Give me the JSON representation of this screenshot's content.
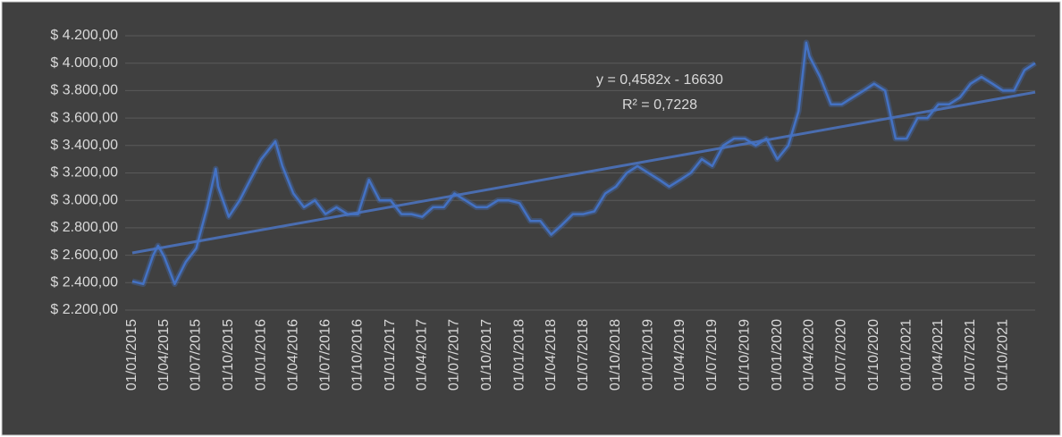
{
  "chart_data": {
    "type": "line",
    "color": "#4472c4",
    "x": [
      "01/01/2015",
      "01/02/2015",
      "01/03/2015",
      "15/03/2015",
      "01/04/2015",
      "01/05/2015",
      "01/06/2015",
      "01/07/2015",
      "01/08/2015",
      "25/08/2015",
      "01/09/2015",
      "01/10/2015",
      "01/11/2015",
      "01/12/2015",
      "01/01/2016",
      "10/02/2016",
      "01/03/2016",
      "01/04/2016",
      "01/05/2016",
      "01/06/2016",
      "01/07/2016",
      "01/08/2016",
      "01/09/2016",
      "01/10/2016",
      "01/11/2016",
      "01/12/2016",
      "01/01/2017",
      "01/02/2017",
      "01/03/2017",
      "01/04/2017",
      "01/05/2017",
      "01/06/2017",
      "01/07/2017",
      "01/08/2017",
      "01/09/2017",
      "01/10/2017",
      "01/11/2017",
      "01/12/2017",
      "01/01/2018",
      "01/02/2018",
      "01/03/2018",
      "01/04/2018",
      "01/05/2018",
      "01/06/2018",
      "01/07/2018",
      "01/08/2018",
      "01/09/2018",
      "01/10/2018",
      "01/11/2018",
      "01/12/2018",
      "01/01/2019",
      "01/02/2019",
      "01/03/2019",
      "01/04/2019",
      "01/05/2019",
      "01/06/2019",
      "01/07/2019",
      "01/08/2019",
      "01/09/2019",
      "01/10/2019",
      "01/11/2019",
      "01/12/2019",
      "01/01/2020",
      "01/02/2020",
      "01/03/2020",
      "23/03/2020",
      "01/04/2020",
      "01/05/2020",
      "01/06/2020",
      "01/07/2020",
      "01/08/2020",
      "01/09/2020",
      "01/10/2020",
      "01/11/2020",
      "01/12/2020",
      "01/01/2021",
      "01/02/2021",
      "01/03/2021",
      "01/04/2021",
      "01/05/2021",
      "01/06/2021",
      "01/07/2021",
      "01/08/2021",
      "01/09/2021",
      "01/10/2021",
      "01/11/2021",
      "01/12/2021",
      "31/12/2021"
    ],
    "values": [
      2410,
      2390,
      2600,
      2670,
      2590,
      2390,
      2550,
      2650,
      2950,
      3230,
      3100,
      2880,
      3000,
      3150,
      3300,
      3430,
      3250,
      3050,
      2950,
      3000,
      2900,
      2950,
      2900,
      2900,
      3150,
      3000,
      3000,
      2900,
      2900,
      2880,
      2950,
      2950,
      3050,
      3000,
      2950,
      2950,
      3000,
      3000,
      2980,
      2850,
      2850,
      2750,
      2820,
      2900,
      2900,
      2920,
      3050,
      3100,
      3200,
      3250,
      3200,
      3150,
      3100,
      3150,
      3200,
      3300,
      3250,
      3400,
      3450,
      3450,
      3400,
      3450,
      3300,
      3400,
      3650,
      4150,
      4050,
      3900,
      3700,
      3700,
      3750,
      3800,
      3850,
      3800,
      3450,
      3450,
      3600,
      3600,
      3700,
      3700,
      3750,
      3850,
      3900,
      3850,
      3800,
      3800,
      3950,
      4000
    ],
    "trendline": {
      "x": [
        "01/01/2015",
        "31/12/2021"
      ],
      "values": [
        2617,
        3788
      ],
      "color": "#4a6db0"
    },
    "annotations": [
      "y = 0,4582x - 16630",
      "R² = 0,7228"
    ],
    "xlim": [
      "01/01/2015",
      "31/12/2021"
    ],
    "xticks": [
      "01/01/2015",
      "01/04/2015",
      "01/07/2015",
      "01/10/2015",
      "01/01/2016",
      "01/04/2016",
      "01/07/2016",
      "01/10/2016",
      "01/01/2017",
      "01/04/2017",
      "01/07/2017",
      "01/10/2017",
      "01/01/2018",
      "01/04/2018",
      "01/07/2018",
      "01/10/2018",
      "01/01/2019",
      "01/04/2019",
      "01/07/2019",
      "01/10/2019",
      "01/01/2020",
      "01/04/2020",
      "01/07/2020",
      "01/10/2020",
      "01/01/2021",
      "01/04/2021",
      "01/07/2021",
      "01/10/2021"
    ],
    "ylim": [
      2200,
      4200
    ],
    "yticks": [
      {
        "value": 2200,
        "label": "$ 2.200,00"
      },
      {
        "value": 2400,
        "label": "$ 2.400,00"
      },
      {
        "value": 2600,
        "label": "$ 2.600,00"
      },
      {
        "value": 2800,
        "label": "$ 2.800,00"
      },
      {
        "value": 3000,
        "label": "$ 3.000,00"
      },
      {
        "value": 3200,
        "label": "$ 3.200,00"
      },
      {
        "value": 3400,
        "label": "$ 3.400,00"
      },
      {
        "value": 3600,
        "label": "$ 3.600,00"
      },
      {
        "value": 3800,
        "label": "$ 3.800,00"
      },
      {
        "value": 4000,
        "label": "$ 4.000,00"
      },
      {
        "value": 4200,
        "label": "$ 4.200,00"
      }
    ],
    "grid": true
  }
}
